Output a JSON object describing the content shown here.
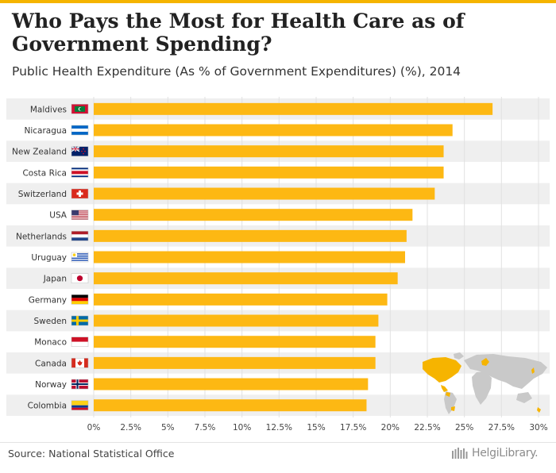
{
  "header": {
    "title": "Who Pays the Most for Health Care as of Government Spending?",
    "subtitle": "Public Health Expenditure (As % of Government Expenditures) (%), 2014"
  },
  "footer": {
    "source": "Source: National Statistical Office",
    "brand": "HelgiLibrary."
  },
  "colors": {
    "bar": "#fdb813",
    "accent": "#f5b400",
    "row_shade": "#efefef",
    "grid": "#e2e2e2",
    "map_land": "#c9c9c9",
    "map_highlight": "#f6b400"
  },
  "chart_data": {
    "type": "bar",
    "orientation": "horizontal",
    "title": "Who Pays the Most for Health Care as of Government Spending?",
    "subtitle": "Public Health Expenditure (As % of Government Expenditures) (%), 2014",
    "xlabel": "",
    "ylabel": "",
    "xlim": [
      0,
      30
    ],
    "grid": true,
    "categories": [
      "Maldives",
      "Nicaragua",
      "New Zealand",
      "Costa Rica",
      "Switzerland",
      "USA",
      "Netherlands",
      "Uruguay",
      "Japan",
      "Germany",
      "Sweden",
      "Monaco",
      "Canada",
      "Norway",
      "Colombia"
    ],
    "flags": [
      "maldives-flag-icon",
      "nicaragua-flag-icon",
      "new-zealand-flag-icon",
      "costa-rica-flag-icon",
      "switzerland-flag-icon",
      "usa-flag-icon",
      "netherlands-flag-icon",
      "uruguay-flag-icon",
      "japan-flag-icon",
      "germany-flag-icon",
      "sweden-flag-icon",
      "monaco-flag-icon",
      "canada-flag-icon",
      "norway-flag-icon",
      "colombia-flag-icon"
    ],
    "values": [
      26.9,
      24.2,
      23.6,
      23.6,
      23.0,
      21.5,
      21.1,
      21.0,
      20.5,
      19.8,
      19.2,
      19.0,
      19.0,
      18.5,
      18.4
    ],
    "ticks": [
      "0%",
      "2.5%",
      "5%",
      "7.5%",
      "10%",
      "12.5%",
      "15%",
      "17.5%",
      "20%",
      "22.5%",
      "25%",
      "27.5%",
      "30%"
    ],
    "tick_values": [
      0,
      2.5,
      5,
      7.5,
      10,
      12.5,
      15,
      17.5,
      20,
      22.5,
      25,
      27.5,
      30
    ]
  }
}
